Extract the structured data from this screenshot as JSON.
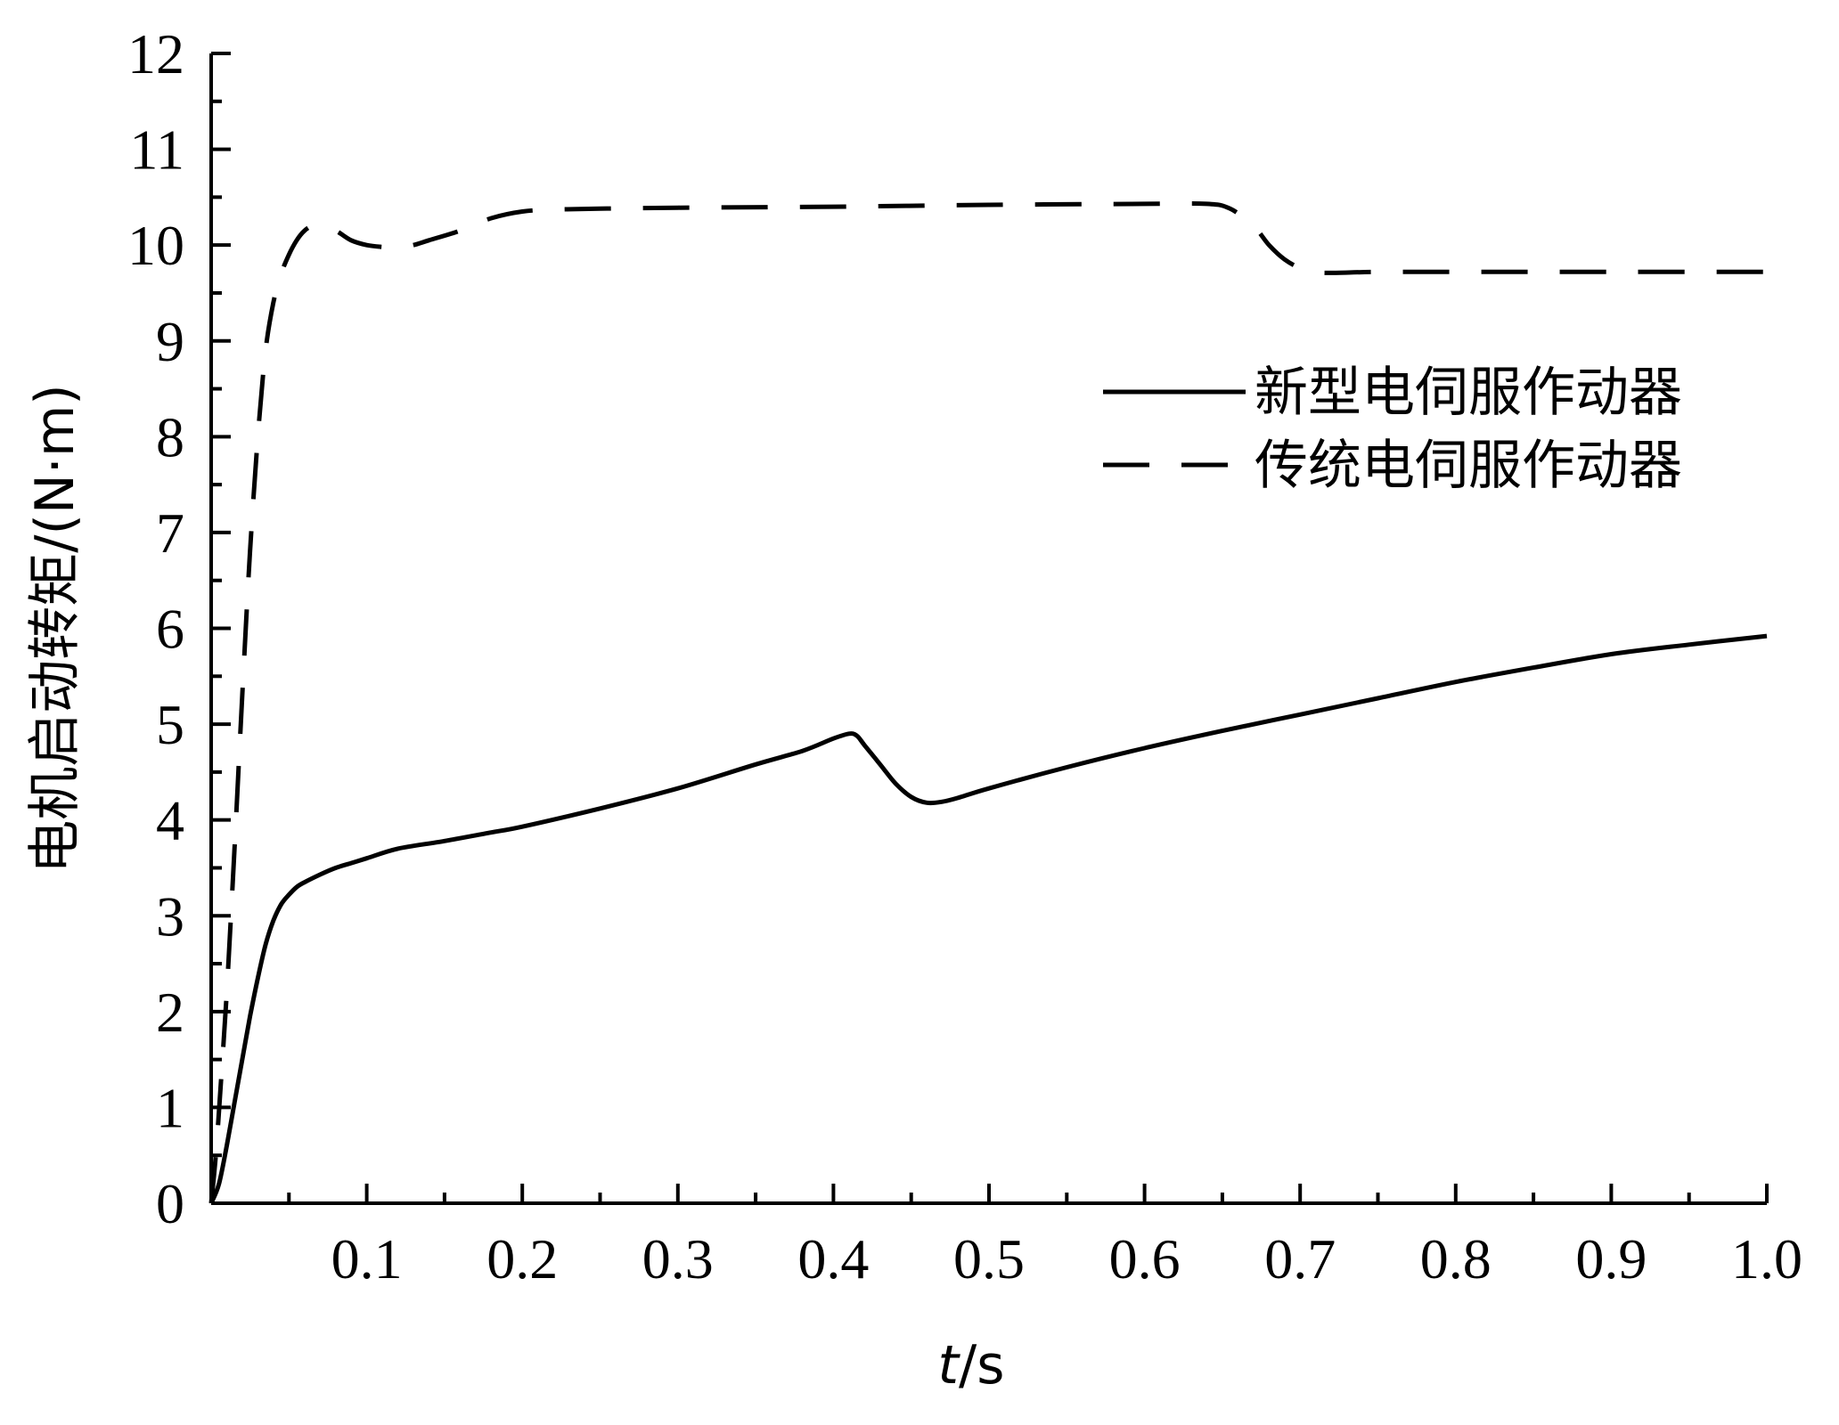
{
  "chart_data": {
    "type": "line",
    "title": "",
    "xlabel_italic": "t",
    "xlabel_rest": "/s",
    "ylabel": "电机启动转矩/(N·m)",
    "xlim": [
      0,
      1.0
    ],
    "ylim": [
      0,
      12
    ],
    "x_ticks": [
      0.1,
      0.2,
      0.3,
      0.4,
      0.5,
      0.6,
      0.7,
      0.8,
      0.9,
      1.0
    ],
    "x_tick_labels": [
      "0.1",
      "0.2",
      "0.3",
      "0.4",
      "0.5",
      "0.6",
      "0.7",
      "0.8",
      "0.9",
      "1.0"
    ],
    "y_ticks": [
      0,
      1,
      2,
      3,
      4,
      5,
      6,
      7,
      8,
      9,
      10,
      11,
      12
    ],
    "y_tick_labels": [
      "0",
      "1",
      "2",
      "3",
      "4",
      "5",
      "6",
      "7",
      "8",
      "9",
      "10",
      "11",
      "12"
    ],
    "grid": false,
    "legend_position": "right",
    "series": [
      {
        "name": "新型电伺服作动器",
        "style": "solid",
        "x": [
          0,
          0.005,
          0.01,
          0.015,
          0.02,
          0.025,
          0.03,
          0.035,
          0.04,
          0.045,
          0.05,
          0.055,
          0.06,
          0.07,
          0.08,
          0.09,
          0.1,
          0.12,
          0.15,
          0.18,
          0.2,
          0.25,
          0.3,
          0.35,
          0.38,
          0.4,
          0.41,
          0.415,
          0.42,
          0.43,
          0.44,
          0.45,
          0.46,
          0.47,
          0.48,
          0.5,
          0.55,
          0.6,
          0.65,
          0.7,
          0.75,
          0.8,
          0.85,
          0.9,
          0.95,
          1.0
        ],
        "values": [
          0,
          0.2,
          0.6,
          1.05,
          1.5,
          1.95,
          2.35,
          2.7,
          2.95,
          3.12,
          3.22,
          3.3,
          3.35,
          3.43,
          3.5,
          3.55,
          3.6,
          3.7,
          3.78,
          3.87,
          3.93,
          4.12,
          4.33,
          4.58,
          4.72,
          4.85,
          4.9,
          4.88,
          4.78,
          4.58,
          4.38,
          4.24,
          4.18,
          4.19,
          4.23,
          4.33,
          4.55,
          4.75,
          4.93,
          5.1,
          5.27,
          5.44,
          5.59,
          5.73,
          5.83,
          5.92
        ]
      },
      {
        "name": "传统电伺服作动器",
        "style": "dashed",
        "x": [
          0,
          0.003,
          0.006,
          0.01,
          0.015,
          0.02,
          0.025,
          0.03,
          0.035,
          0.04,
          0.045,
          0.05,
          0.055,
          0.06,
          0.065,
          0.07,
          0.08,
          0.09,
          0.1,
          0.11,
          0.12,
          0.13,
          0.14,
          0.16,
          0.18,
          0.2,
          0.22,
          0.25,
          0.3,
          0.4,
          0.5,
          0.6,
          0.64,
          0.655,
          0.67,
          0.68,
          0.69,
          0.7,
          0.71,
          0.72,
          0.75,
          0.8,
          0.9,
          1.0
        ],
        "values": [
          0,
          0.5,
          1.2,
          2.2,
          3.7,
          5.3,
          6.8,
          8.0,
          8.9,
          9.4,
          9.7,
          9.9,
          10.05,
          10.15,
          10.2,
          10.2,
          10.15,
          10.05,
          10.0,
          9.98,
          9.97,
          10.0,
          10.05,
          10.15,
          10.28,
          10.35,
          10.37,
          10.38,
          10.39,
          10.4,
          10.42,
          10.43,
          10.43,
          10.38,
          10.2,
          10.0,
          9.85,
          9.76,
          9.72,
          9.71,
          9.72,
          9.72,
          9.72,
          9.72
        ]
      }
    ]
  }
}
